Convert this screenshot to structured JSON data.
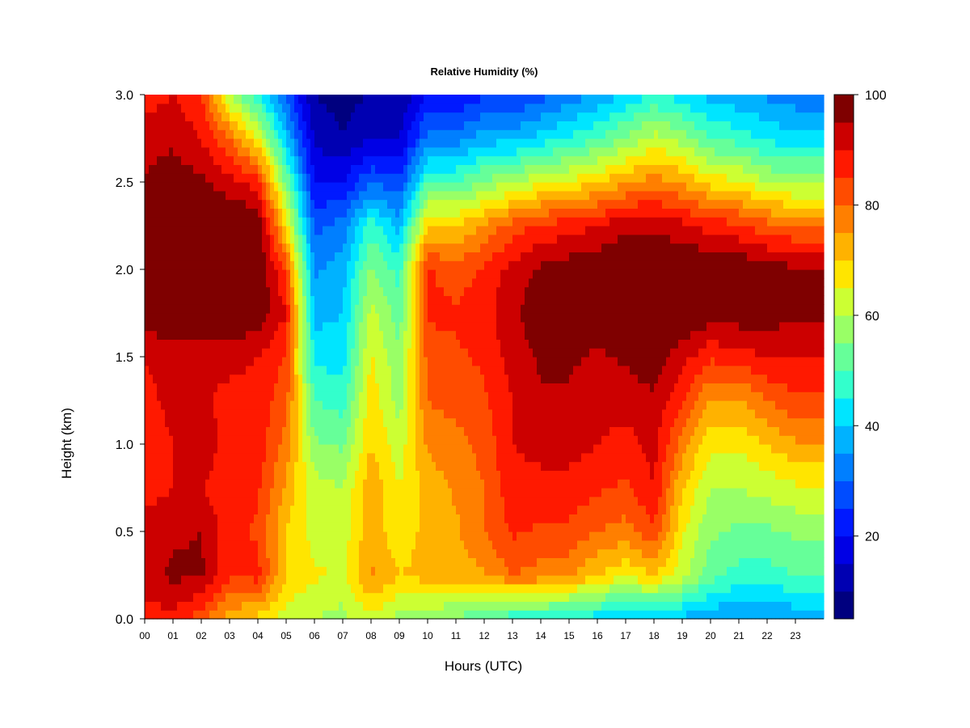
{
  "chart_data": {
    "type": "heatmap",
    "title": "Relative Humidity (%)",
    "xlabel": "Hours (UTC)",
    "ylabel": "Height (km)",
    "xlim": [
      0,
      24
    ],
    "ylim": [
      0.0,
      3.0
    ],
    "x_ticks": [
      "00",
      "01",
      "02",
      "03",
      "04",
      "05",
      "06",
      "07",
      "08",
      "09",
      "10",
      "11",
      "12",
      "13",
      "14",
      "15",
      "16",
      "17",
      "18",
      "19",
      "20",
      "21",
      "22",
      "23"
    ],
    "y_ticks": [
      "0.0",
      "0.5",
      "1.0",
      "1.5",
      "2.0",
      "2.5",
      "3.0"
    ],
    "colorbar": {
      "range": [
        5,
        100
      ],
      "tick_values": [
        20,
        40,
        60,
        80,
        100
      ],
      "tick_labels": [
        "20",
        "40",
        "60",
        "80",
        "100"
      ],
      "levels": [
        5,
        10,
        15,
        20,
        25,
        30,
        35,
        40,
        45,
        50,
        55,
        60,
        65,
        70,
        75,
        80,
        85,
        90,
        95,
        100
      ],
      "colors": [
        "#00007F",
        "#0000B2",
        "#0000E5",
        "#0019FF",
        "#004CFF",
        "#007FFF",
        "#00B2FF",
        "#00E5FF",
        "#33FFCC",
        "#66FF99",
        "#99FF66",
        "#CCFF33",
        "#FFE500",
        "#FFB200",
        "#FF7F00",
        "#FF4C00",
        "#FF1900",
        "#CC0000",
        "#7F0000"
      ]
    },
    "hours": [
      0,
      1,
      2,
      3,
      4,
      5,
      6,
      7,
      8,
      9,
      10,
      11,
      12,
      13,
      14,
      15,
      16,
      17,
      18,
      19,
      20,
      21,
      22,
      23,
      24
    ],
    "heights": [
      0.0,
      0.25,
      0.5,
      0.75,
      1.0,
      1.25,
      1.5,
      1.75,
      2.0,
      2.25,
      2.5,
      2.75,
      3.0
    ],
    "rh_profiles": [
      [
        88,
        93,
        92,
        88,
        85,
        88,
        90,
        98,
        100,
        100,
        96,
        92,
        88
      ],
      [
        88,
        96,
        94,
        90,
        90,
        92,
        93,
        99,
        100,
        100,
        98,
        94,
        90
      ],
      [
        82,
        96,
        95,
        90,
        93,
        91,
        92,
        99,
        100,
        100,
        96,
        90,
        85
      ],
      [
        72,
        86,
        87,
        87,
        88,
        88,
        92,
        99,
        100,
        100,
        92,
        80,
        60
      ],
      [
        68,
        87,
        84,
        86,
        88,
        88,
        90,
        99,
        100,
        100,
        88,
        66,
        46
      ],
      [
        62,
        70,
        70,
        74,
        78,
        82,
        84,
        90,
        84,
        68,
        54,
        40,
        28
      ],
      [
        60,
        66,
        63,
        62,
        56,
        50,
        44,
        38,
        34,
        28,
        20,
        14,
        10
      ],
      [
        58,
        64,
        62,
        60,
        54,
        48,
        42,
        40,
        38,
        32,
        20,
        10,
        8
      ],
      [
        64,
        76,
        74,
        74,
        70,
        68,
        66,
        62,
        56,
        48,
        30,
        15,
        10
      ],
      [
        58,
        70,
        66,
        65,
        62,
        58,
        56,
        52,
        48,
        38,
        26,
        15,
        10
      ],
      [
        56,
        72,
        72,
        72,
        76,
        80,
        82,
        86,
        86,
        70,
        50,
        32,
        20
      ],
      [
        54,
        72,
        74,
        76,
        78,
        82,
        84,
        86,
        82,
        70,
        50,
        32,
        20
      ],
      [
        50,
        74,
        80,
        80,
        82,
        84,
        86,
        88,
        86,
        76,
        56,
        38,
        24
      ],
      [
        46,
        80,
        86,
        88,
        90,
        90,
        92,
        94,
        92,
        82,
        60,
        38,
        24
      ],
      [
        46,
        78,
        84,
        88,
        92,
        94,
        96,
        98,
        96,
        86,
        64,
        42,
        28
      ],
      [
        44,
        76,
        84,
        88,
        92,
        94,
        96,
        99,
        98,
        88,
        66,
        46,
        32
      ],
      [
        42,
        70,
        80,
        86,
        90,
        92,
        94,
        99,
        99,
        90,
        70,
        50,
        36
      ],
      [
        40,
        66,
        78,
        84,
        88,
        92,
        96,
        100,
        100,
        94,
        74,
        56,
        40
      ],
      [
        40,
        70,
        84,
        90,
        92,
        94,
        98,
        100,
        100,
        94,
        78,
        62,
        46
      ],
      [
        38,
        62,
        66,
        70,
        78,
        86,
        92,
        100,
        100,
        92,
        74,
        58,
        42
      ],
      [
        36,
        52,
        56,
        60,
        66,
        74,
        86,
        98,
        100,
        88,
        68,
        50,
        38
      ],
      [
        34,
        48,
        54,
        60,
        66,
        74,
        88,
        98,
        100,
        86,
        66,
        48,
        36
      ],
      [
        34,
        48,
        54,
        62,
        70,
        80,
        90,
        98,
        98,
        82,
        60,
        44,
        34
      ],
      [
        36,
        50,
        56,
        64,
        74,
        84,
        90,
        96,
        96,
        80,
        58,
        42,
        32
      ],
      [
        36,
        50,
        56,
        64,
        74,
        84,
        90,
        96,
        96,
        80,
        58,
        42,
        32
      ]
    ]
  }
}
